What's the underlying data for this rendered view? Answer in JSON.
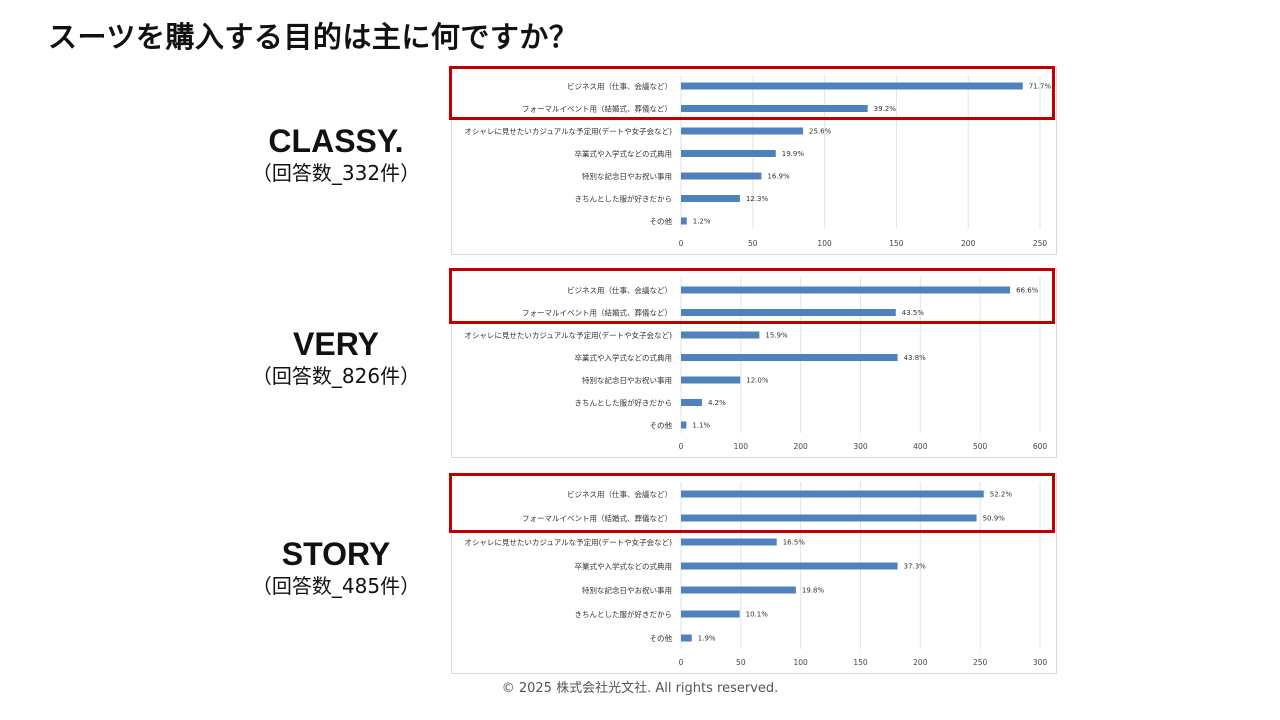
{
  "slide": {
    "title": "スーツを購入する目的は主に何ですか？",
    "footer": "© 2025 株式会社光文社. All rights reserved."
  },
  "chart_data": [
    {
      "type": "bar",
      "orientation": "horizontal",
      "magazine": "CLASSY.",
      "respondents": "（回答数_332件）",
      "categories": [
        "ビジネス用（仕事、会議など）",
        "フォーマルイベント用（結婚式、葬儀など）",
        "オシャレに見せたいカジュアルな予定用(デートや女子会など)",
        "卒業式や入学式などの式典用",
        "特別な記念日やお祝い事用",
        "きちんとした服が好きだから",
        "その他"
      ],
      "values": [
        238,
        130,
        85,
        66,
        56,
        41,
        4
      ],
      "labels": [
        "71.7%",
        "39.2%",
        "25.6%",
        "19.9%",
        "16.9%",
        "12.3%",
        "1.2%"
      ],
      "xlim": [
        0,
        250
      ],
      "ticks": [
        0,
        50,
        100,
        150,
        200,
        250
      ],
      "grid": true,
      "highlighted_rows": 2,
      "color": "#4f81bd",
      "highlight_color": "#c00000"
    },
    {
      "type": "bar",
      "orientation": "horizontal",
      "magazine": "VERY",
      "respondents": "（回答数_826件）",
      "categories": [
        "ビジネス用（仕事、会議など）",
        "フォーマルイベント用（結婚式、葬儀など）",
        "オシャレに見せたいカジュアルな予定用(デートや女子会など)",
        "卒業式や入学式などの式典用",
        "特別な記念日やお祝い事用",
        "きちんとした服が好きだから",
        "その他"
      ],
      "values": [
        550,
        359,
        131,
        362,
        99,
        35,
        9
      ],
      "labels": [
        "66.6%",
        "43.5%",
        "15.9%",
        "43.8%",
        "12.0%",
        "4.2%",
        "1.1%"
      ],
      "xlim": [
        0,
        600
      ],
      "ticks": [
        0,
        100,
        200,
        300,
        400,
        500,
        600
      ],
      "grid": true,
      "highlighted_rows": 2,
      "color": "#4f81bd",
      "highlight_color": "#c00000"
    },
    {
      "type": "bar",
      "orientation": "horizontal",
      "magazine": "STORY",
      "respondents": "（回答数_485件）",
      "categories": [
        "ビジネス用（仕事、会議など）",
        "フォーマルイベント用（結婚式、葬儀など）",
        "オシャレに見せたいカジュアルな予定用(デートや女子会など)",
        "卒業式や入学式などの式典用",
        "特別な記念日やお祝い事用",
        "きちんとした服が好きだから",
        "その他"
      ],
      "values": [
        253,
        247,
        80,
        181,
        96,
        49,
        9
      ],
      "labels": [
        "52.2%",
        "50.9%",
        "16.5%",
        "37.3%",
        "19.8%",
        "10.1%",
        "1.9%"
      ],
      "xlim": [
        0,
        300
      ],
      "ticks": [
        0,
        50,
        100,
        150,
        200,
        250,
        300
      ],
      "grid": true,
      "highlighted_rows": 2,
      "color": "#4f81bd",
      "highlight_color": "#c00000"
    }
  ]
}
